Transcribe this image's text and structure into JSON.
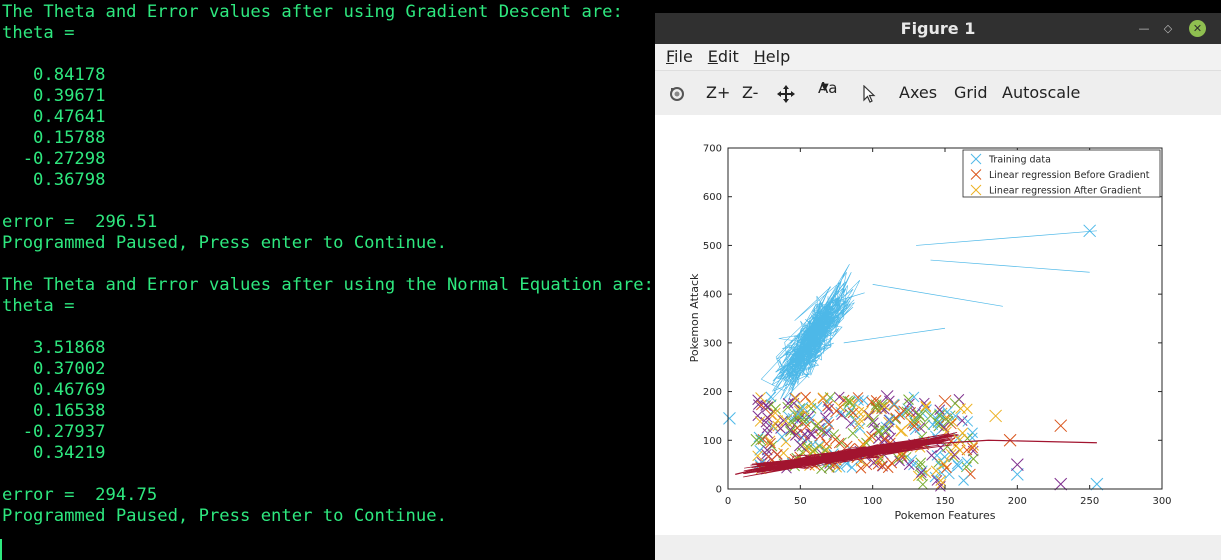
{
  "terminal": {
    "lines": [
      "The Theta and Error values after using Gradient Descent are:",
      "theta =",
      "",
      "   0.84178",
      "   0.39671",
      "   0.47641",
      "   0.15788",
      "  -0.27298",
      "   0.36798",
      "",
      "error =  296.51",
      "Programmed Paused, Press enter to Continue.",
      "",
      "The Theta and Error values after using the Normal Equation are:",
      "theta =",
      "",
      "   3.51868",
      "   0.37002",
      "   0.46769",
      "   0.16538",
      "  -0.27937",
      "   0.34219",
      "",
      "error =  294.75",
      "Programmed Paused, Press enter to Continue."
    ],
    "text_color": "#2ee87f"
  },
  "figure": {
    "title": "Figure 1",
    "window_buttons": {
      "minimize": "—",
      "restore": "◇",
      "close": "✕"
    },
    "menu": [
      "File",
      "Edit",
      "Help"
    ],
    "toolbar": {
      "rotate_icon": "rotate-icon",
      "zoom_in": "Z+",
      "zoom_out": "Z-",
      "pan_icon": "pan-icon",
      "text_icon_label": "Aa",
      "select_icon": "pointer-icon",
      "axes": "Axes",
      "grid": "Grid",
      "autoscale": "Autoscale"
    }
  },
  "chart_data": {
    "type": "scatter",
    "xlabel": "Pokemon Features",
    "ylabel": "Pokemon Attack",
    "xlim": [
      0,
      300
    ],
    "ylim": [
      0,
      700
    ],
    "xticks": [
      0,
      50,
      100,
      150,
      200,
      250,
      300
    ],
    "yticks": [
      0,
      100,
      200,
      300,
      400,
      500,
      600,
      700
    ],
    "grid": false,
    "legend_position": "top-right",
    "series": [
      {
        "name": "Training data",
        "color": "#4db8e8",
        "marker": "x",
        "x": [
          1,
          250,
          255,
          200
        ],
        "y": [
          145,
          530,
          10,
          30
        ]
      },
      {
        "name": "Linear regression Before Gradient",
        "color": "#d95319",
        "marker": "x",
        "x": [
          230,
          195,
          150,
          75
        ],
        "y": [
          130,
          100,
          180,
          160
        ]
      },
      {
        "name": "Linear regression After Gradient",
        "color": "#edb120",
        "marker": "x",
        "x": [
          185,
          160,
          120,
          40
        ],
        "y": [
          150,
          100,
          120,
          140
        ]
      }
    ],
    "extra_markers": [
      {
        "color": "#7e2f8e",
        "x": [
          230,
          200,
          110,
          50
        ],
        "y": [
          10,
          50,
          190,
          90
        ]
      },
      {
        "color": "#77ac30",
        "x": [
          20,
          60,
          100,
          140
        ],
        "y": [
          100,
          80,
          140,
          150
        ]
      }
    ],
    "fit_line": {
      "color": "#a2142f",
      "x": [
        5,
        60,
        100,
        180,
        255
      ],
      "y": [
        30,
        70,
        85,
        100,
        95
      ]
    }
  }
}
